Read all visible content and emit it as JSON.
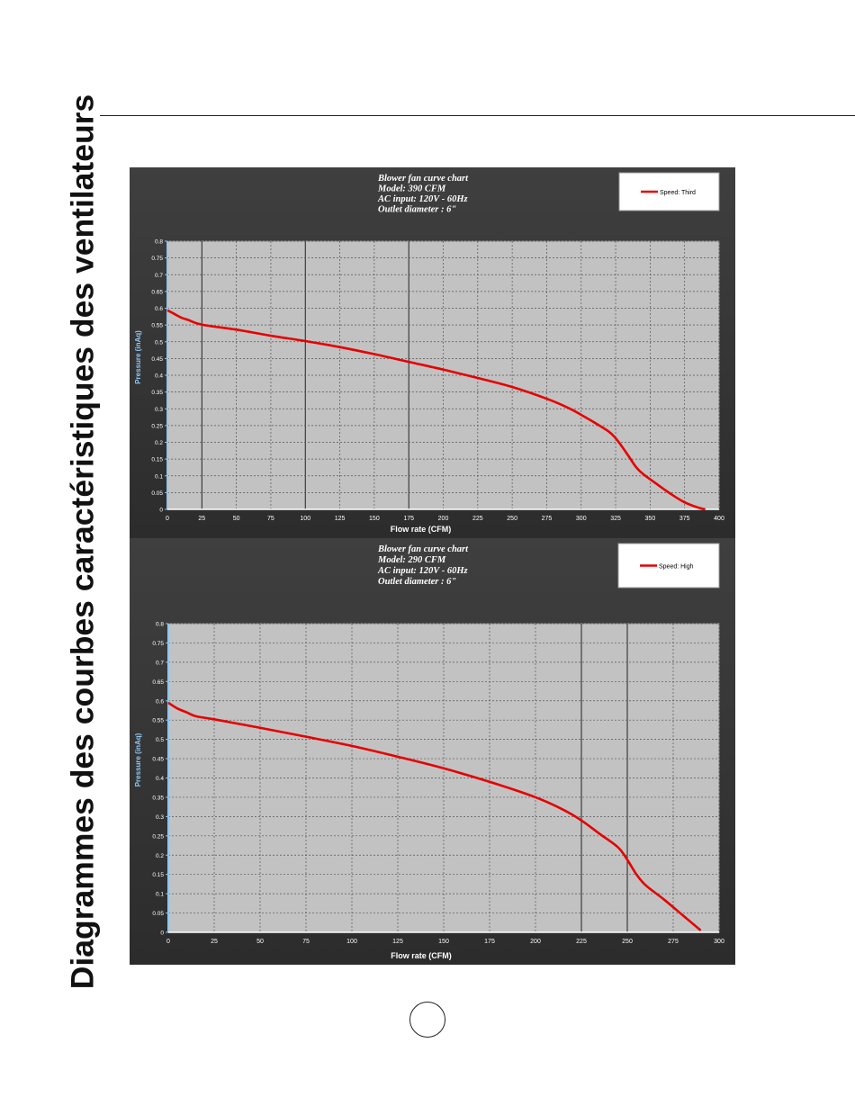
{
  "side_title": "Diagrammes des courbes caractéristiques des ventilateurs",
  "chart_data": [
    {
      "type": "line",
      "title_lines": [
        "Blower fan curve chart",
        " Model: 390 CFM",
        "AC input: 120V - 60Hz",
        "Outlet diameter : 6\""
      ],
      "xlabel": "Flow rate (CFM)",
      "ylabel": "Pressure (inAq)",
      "xlim": [
        0,
        400
      ],
      "ylim": [
        0,
        0.8
      ],
      "xticks": [
        "0",
        "25",
        "50",
        "75",
        "100",
        "125",
        "150",
        "175",
        "200",
        "225",
        "250",
        "275",
        "300",
        "325",
        "350",
        "375",
        "400"
      ],
      "yticks": [
        "0",
        "0.05",
        "0.1",
        "0.15",
        "0.2",
        "0.25",
        "0.3",
        "0.35",
        "0.4",
        "0.45",
        "0.5",
        "0.55",
        "0.6",
        "0.65",
        "0.7",
        "0.75",
        "0.8"
      ],
      "grid": true,
      "legend_position": "top-right",
      "series": [
        {
          "name": "Speed: Third",
          "color": "#e60000",
          "x": [
            0,
            5,
            10,
            15,
            25,
            50,
            75,
            100,
            125,
            150,
            175,
            200,
            225,
            250,
            275,
            290,
            300,
            310,
            320,
            325,
            330,
            335,
            340,
            345,
            355,
            365,
            375,
            385,
            390
          ],
          "y": [
            0.594,
            0.583,
            0.572,
            0.565,
            0.551,
            0.536,
            0.518,
            0.502,
            0.484,
            0.463,
            0.44,
            0.417,
            0.392,
            0.365,
            0.33,
            0.304,
            0.282,
            0.258,
            0.232,
            0.212,
            0.185,
            0.155,
            0.125,
            0.105,
            0.075,
            0.046,
            0.021,
            0.005,
            0.0
          ]
        }
      ]
    },
    {
      "type": "line",
      "title_lines": [
        "Blower fan curve chart",
        " Model:  290 CFM",
        "AC input: 120V - 60Hz",
        "Outlet diameter : 6\""
      ],
      "xlabel": "Flow rate (CFM)",
      "ylabel": "Pressure (inAq)",
      "xlim": [
        0,
        300
      ],
      "ylim": [
        0,
        0.8
      ],
      "xticks": [
        "0",
        "25",
        "50",
        "75",
        "100",
        "125",
        "150",
        "175",
        "200",
        "225",
        "250",
        "275",
        "300"
      ],
      "yticks": [
        "0",
        "0.05",
        "0.1",
        "0.15",
        "0.2",
        "0.25",
        "0.3",
        "0.35",
        "0.4",
        "0.45",
        "0.5",
        "0.55",
        "0.6",
        "0.65",
        "0.7",
        "0.75",
        "0.8"
      ],
      "grid": true,
      "legend_position": "top-right",
      "series": [
        {
          "name": "Speed: High",
          "color": "#e60000",
          "x": [
            0,
            5,
            10,
            15,
            25,
            50,
            75,
            100,
            125,
            150,
            175,
            200,
            215,
            225,
            235,
            245,
            250,
            255,
            260,
            270,
            280,
            290
          ],
          "y": [
            0.595,
            0.58,
            0.57,
            0.56,
            0.552,
            0.53,
            0.507,
            0.483,
            0.455,
            0.425,
            0.39,
            0.35,
            0.318,
            0.29,
            0.255,
            0.22,
            0.188,
            0.15,
            0.122,
            0.085,
            0.045,
            0.005
          ]
        }
      ]
    }
  ]
}
